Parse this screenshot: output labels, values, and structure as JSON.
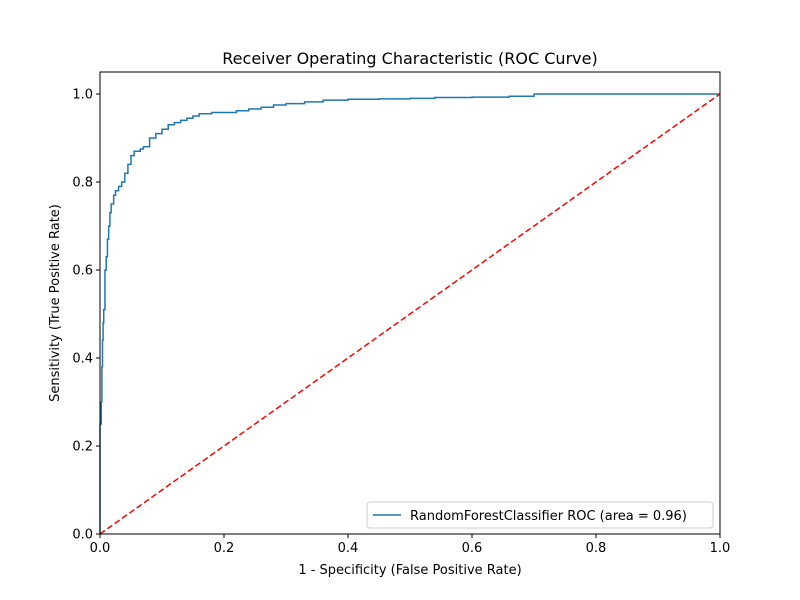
{
  "chart_data": {
    "type": "line",
    "title": "Receiver Operating Characteristic (ROC Curve)",
    "xlabel": "1 - Specificity (False Positive Rate)",
    "ylabel": "Sensitivity (True Positive Rate)",
    "xlim": [
      0.0,
      1.0
    ],
    "ylim": [
      0.0,
      1.05
    ],
    "xticks": [
      "0.0",
      "0.2",
      "0.4",
      "0.6",
      "0.8",
      "1.0"
    ],
    "yticks": [
      "0.0",
      "0.2",
      "0.4",
      "0.6",
      "0.8",
      "1.0"
    ],
    "grid": false,
    "legend_position": "lower-right",
    "series": [
      {
        "name": "RandomForestClassifier ROC (area = 0.96)",
        "color": "#1f77b4",
        "style": "step",
        "x": [
          0.0,
          0.0,
          0.002,
          0.003,
          0.004,
          0.005,
          0.006,
          0.008,
          0.01,
          0.012,
          0.014,
          0.016,
          0.018,
          0.02,
          0.022,
          0.025,
          0.03,
          0.035,
          0.04,
          0.045,
          0.05,
          0.055,
          0.06,
          0.065,
          0.07,
          0.08,
          0.09,
          0.1,
          0.11,
          0.12,
          0.13,
          0.14,
          0.15,
          0.16,
          0.18,
          0.2,
          0.22,
          0.24,
          0.26,
          0.28,
          0.3,
          0.33,
          0.36,
          0.4,
          0.45,
          0.5,
          0.54,
          0.6,
          0.66,
          0.7,
          0.75,
          0.85,
          1.0
        ],
        "y": [
          0.0,
          0.25,
          0.3,
          0.38,
          0.44,
          0.48,
          0.51,
          0.6,
          0.63,
          0.67,
          0.7,
          0.73,
          0.75,
          0.75,
          0.77,
          0.78,
          0.79,
          0.8,
          0.82,
          0.84,
          0.86,
          0.87,
          0.87,
          0.875,
          0.88,
          0.9,
          0.91,
          0.92,
          0.93,
          0.935,
          0.94,
          0.945,
          0.95,
          0.955,
          0.958,
          0.958,
          0.962,
          0.966,
          0.97,
          0.975,
          0.978,
          0.982,
          0.986,
          0.988,
          0.989,
          0.99,
          0.992,
          0.993,
          0.995,
          1.0,
          1.0,
          1.0,
          1.0
        ]
      },
      {
        "name": "",
        "color": "#ff0000",
        "style": "dashed",
        "x": [
          0.0,
          1.0
        ],
        "y": [
          0.0,
          1.0
        ]
      }
    ]
  }
}
